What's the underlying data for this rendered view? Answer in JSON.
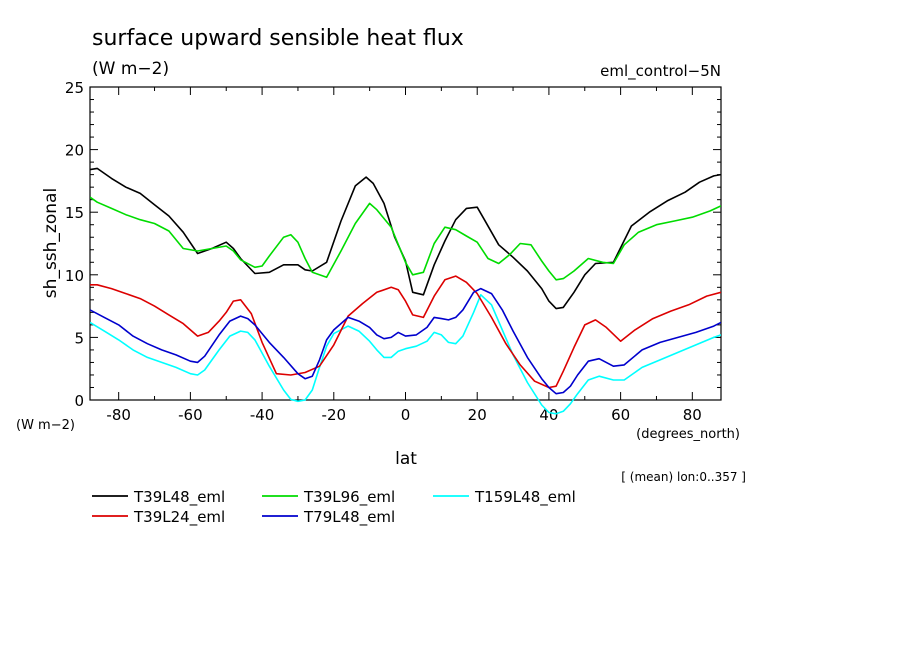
{
  "chart_data": {
    "type": "line",
    "title": "surface upward sensible heat flux",
    "subtitle": "(W m−2)",
    "experiment": "eml_control−5N",
    "ylabel": "sh_ssh_zonal",
    "y_units": "(W m−2)",
    "xlabel": "lat",
    "x_units": "(degrees_north)",
    "note": "[ (mean) lon:0..357 ]",
    "xlim": [
      -88,
      88
    ],
    "ylim": [
      0,
      25
    ],
    "x_ticks": [
      -80,
      -60,
      -40,
      -20,
      0,
      20,
      40,
      60,
      80
    ],
    "y_ticks": [
      0,
      5,
      10,
      15,
      20,
      25
    ],
    "grid": false,
    "legend_position": "bottom",
    "series": [
      {
        "name": "T39L48_eml",
        "color": "#000000",
        "x": [
          -88,
          -86,
          -82,
          -78,
          -74,
          -70,
          -66,
          -62,
          -58,
          -54,
          -50,
          -48,
          -46,
          -42,
          -38,
          -34,
          -30,
          -28,
          -26,
          -22,
          -18,
          -14,
          -11,
          -9,
          -6,
          -3,
          0,
          2,
          5,
          8,
          11,
          14,
          17,
          20,
          22,
          26,
          30,
          34,
          38,
          40,
          42,
          44,
          47,
          50,
          53,
          58,
          63,
          68,
          73,
          78,
          82,
          86,
          88
        ],
        "y": [
          18.4,
          18.5,
          17.7,
          17.0,
          16.5,
          15.6,
          14.7,
          13.4,
          11.7,
          12.1,
          12.6,
          12.1,
          11.3,
          10.1,
          10.2,
          10.8,
          10.8,
          10.4,
          10.3,
          11.0,
          14.3,
          17.1,
          17.8,
          17.3,
          15.7,
          13.0,
          11.1,
          8.6,
          8.4,
          10.8,
          12.7,
          14.4,
          15.3,
          15.4,
          14.4,
          12.4,
          11.4,
          10.3,
          8.9,
          7.9,
          7.3,
          7.4,
          8.6,
          10.0,
          10.9,
          11.0,
          13.9,
          15.0,
          15.9,
          16.6,
          17.4,
          17.9,
          18.0
        ]
      },
      {
        "name": "T39L96_eml",
        "color": "#00dc00",
        "x": [
          -88,
          -86,
          -82,
          -78,
          -74,
          -70,
          -66,
          -62,
          -58,
          -54,
          -50,
          -48,
          -46,
          -42,
          -40,
          -38,
          -34,
          -32,
          -30,
          -28,
          -26,
          -22,
          -18,
          -14,
          -10,
          -8,
          -6,
          -4,
          0,
          2,
          5,
          8,
          11,
          14,
          17,
          20,
          23,
          26,
          29,
          32,
          35,
          38,
          40,
          42,
          44,
          47,
          51,
          55,
          58,
          61,
          65,
          70,
          75,
          80,
          85,
          88
        ],
        "y": [
          16.2,
          15.8,
          15.3,
          14.8,
          14.4,
          14.1,
          13.5,
          12.1,
          11.9,
          12.1,
          12.3,
          11.9,
          11.2,
          10.6,
          10.7,
          11.5,
          13.0,
          13.2,
          12.6,
          11.3,
          10.2,
          9.8,
          11.9,
          14.1,
          15.7,
          15.2,
          14.5,
          13.8,
          11.0,
          10.0,
          10.2,
          12.5,
          13.8,
          13.6,
          13.1,
          12.6,
          11.3,
          10.9,
          11.6,
          12.5,
          12.4,
          11.1,
          10.3,
          9.6,
          9.7,
          10.3,
          11.3,
          11.0,
          10.9,
          12.4,
          13.4,
          14.0,
          14.3,
          14.6,
          15.1,
          15.5
        ]
      },
      {
        "name": "T159L48_eml",
        "color": "#00ffff",
        "x": [
          -88,
          -84,
          -80,
          -76,
          -72,
          -68,
          -64,
          -60,
          -58,
          -56,
          -52,
          -49,
          -46,
          -44,
          -42,
          -38,
          -34,
          -32,
          -30,
          -28,
          -26,
          -24,
          -22,
          -20,
          -16,
          -13,
          -10,
          -8,
          -6,
          -4,
          -2,
          0,
          3,
          6,
          8,
          10,
          12,
          14,
          16,
          19,
          21,
          24,
          27,
          30,
          34,
          38,
          40,
          42,
          44,
          46,
          48,
          51,
          54,
          58,
          61,
          66,
          71,
          76,
          81,
          86,
          88
        ],
        "y": [
          6.2,
          5.5,
          4.8,
          4.0,
          3.4,
          3.0,
          2.6,
          2.1,
          2.0,
          2.4,
          4.0,
          5.1,
          5.5,
          5.4,
          4.8,
          2.7,
          0.8,
          0.05,
          -0.1,
          0.0,
          0.8,
          2.6,
          4.3,
          5.3,
          5.9,
          5.5,
          4.7,
          4.0,
          3.4,
          3.4,
          3.9,
          4.1,
          4.3,
          4.7,
          5.4,
          5.2,
          4.6,
          4.5,
          5.1,
          7.0,
          8.4,
          7.6,
          5.6,
          3.6,
          1.4,
          -0.4,
          -1.0,
          -1.1,
          -0.9,
          -0.3,
          0.5,
          1.6,
          1.9,
          1.6,
          1.6,
          2.6,
          3.2,
          3.8,
          4.4,
          5.0,
          5.2
        ]
      },
      {
        "name": "T39L24_eml",
        "color": "#dc0000",
        "x": [
          -88,
          -86,
          -82,
          -78,
          -74,
          -70,
          -66,
          -62,
          -58,
          -55,
          -52,
          -50,
          -48,
          -46,
          -43,
          -40,
          -36,
          -32,
          -28,
          -24,
          -20,
          -16,
          -12,
          -8,
          -4,
          -2,
          0,
          2,
          5,
          8,
          11,
          14,
          17,
          20,
          24,
          28,
          32,
          36,
          40,
          42,
          44,
          47,
          50,
          53,
          56,
          60,
          64,
          69,
          74,
          79,
          84,
          88
        ],
        "y": [
          9.2,
          9.2,
          8.9,
          8.5,
          8.1,
          7.5,
          6.8,
          6.1,
          5.1,
          5.4,
          6.3,
          7.0,
          7.9,
          8.0,
          6.9,
          4.6,
          2.1,
          2.0,
          2.2,
          2.7,
          4.4,
          6.7,
          7.7,
          8.6,
          9.0,
          8.8,
          7.9,
          6.8,
          6.6,
          8.3,
          9.6,
          9.9,
          9.4,
          8.5,
          6.6,
          4.5,
          2.8,
          1.5,
          1.0,
          1.1,
          2.3,
          4.2,
          6.0,
          6.4,
          5.8,
          4.7,
          5.6,
          6.5,
          7.1,
          7.6,
          8.3,
          8.6
        ]
      },
      {
        "name": "T79L48_eml",
        "color": "#0000cd",
        "x": [
          -88,
          -84,
          -80,
          -76,
          -72,
          -68,
          -64,
          -60,
          -58,
          -56,
          -52,
          -49,
          -46,
          -44,
          -42,
          -38,
          -34,
          -30,
          -28,
          -26,
          -24,
          -22,
          -20,
          -16,
          -13,
          -10,
          -8,
          -6,
          -4,
          -2,
          0,
          3,
          6,
          8,
          10,
          12,
          14,
          16,
          19,
          21,
          24,
          27,
          30,
          34,
          38,
          40,
          42,
          44,
          46,
          48,
          51,
          54,
          58,
          61,
          66,
          71,
          76,
          81,
          86,
          88
        ],
        "y": [
          7.2,
          6.6,
          6.0,
          5.1,
          4.5,
          4.0,
          3.6,
          3.1,
          3.0,
          3.5,
          5.2,
          6.3,
          6.7,
          6.5,
          6.0,
          4.6,
          3.4,
          2.1,
          1.7,
          1.9,
          3.2,
          4.8,
          5.6,
          6.6,
          6.3,
          5.8,
          5.2,
          4.9,
          5.0,
          5.4,
          5.1,
          5.2,
          5.8,
          6.6,
          6.5,
          6.4,
          6.6,
          7.2,
          8.6,
          8.9,
          8.5,
          7.2,
          5.5,
          3.4,
          1.7,
          1.0,
          0.5,
          0.6,
          1.1,
          2.0,
          3.1,
          3.3,
          2.7,
          2.8,
          4.0,
          4.6,
          5.0,
          5.4,
          5.9,
          6.2
        ]
      }
    ]
  }
}
